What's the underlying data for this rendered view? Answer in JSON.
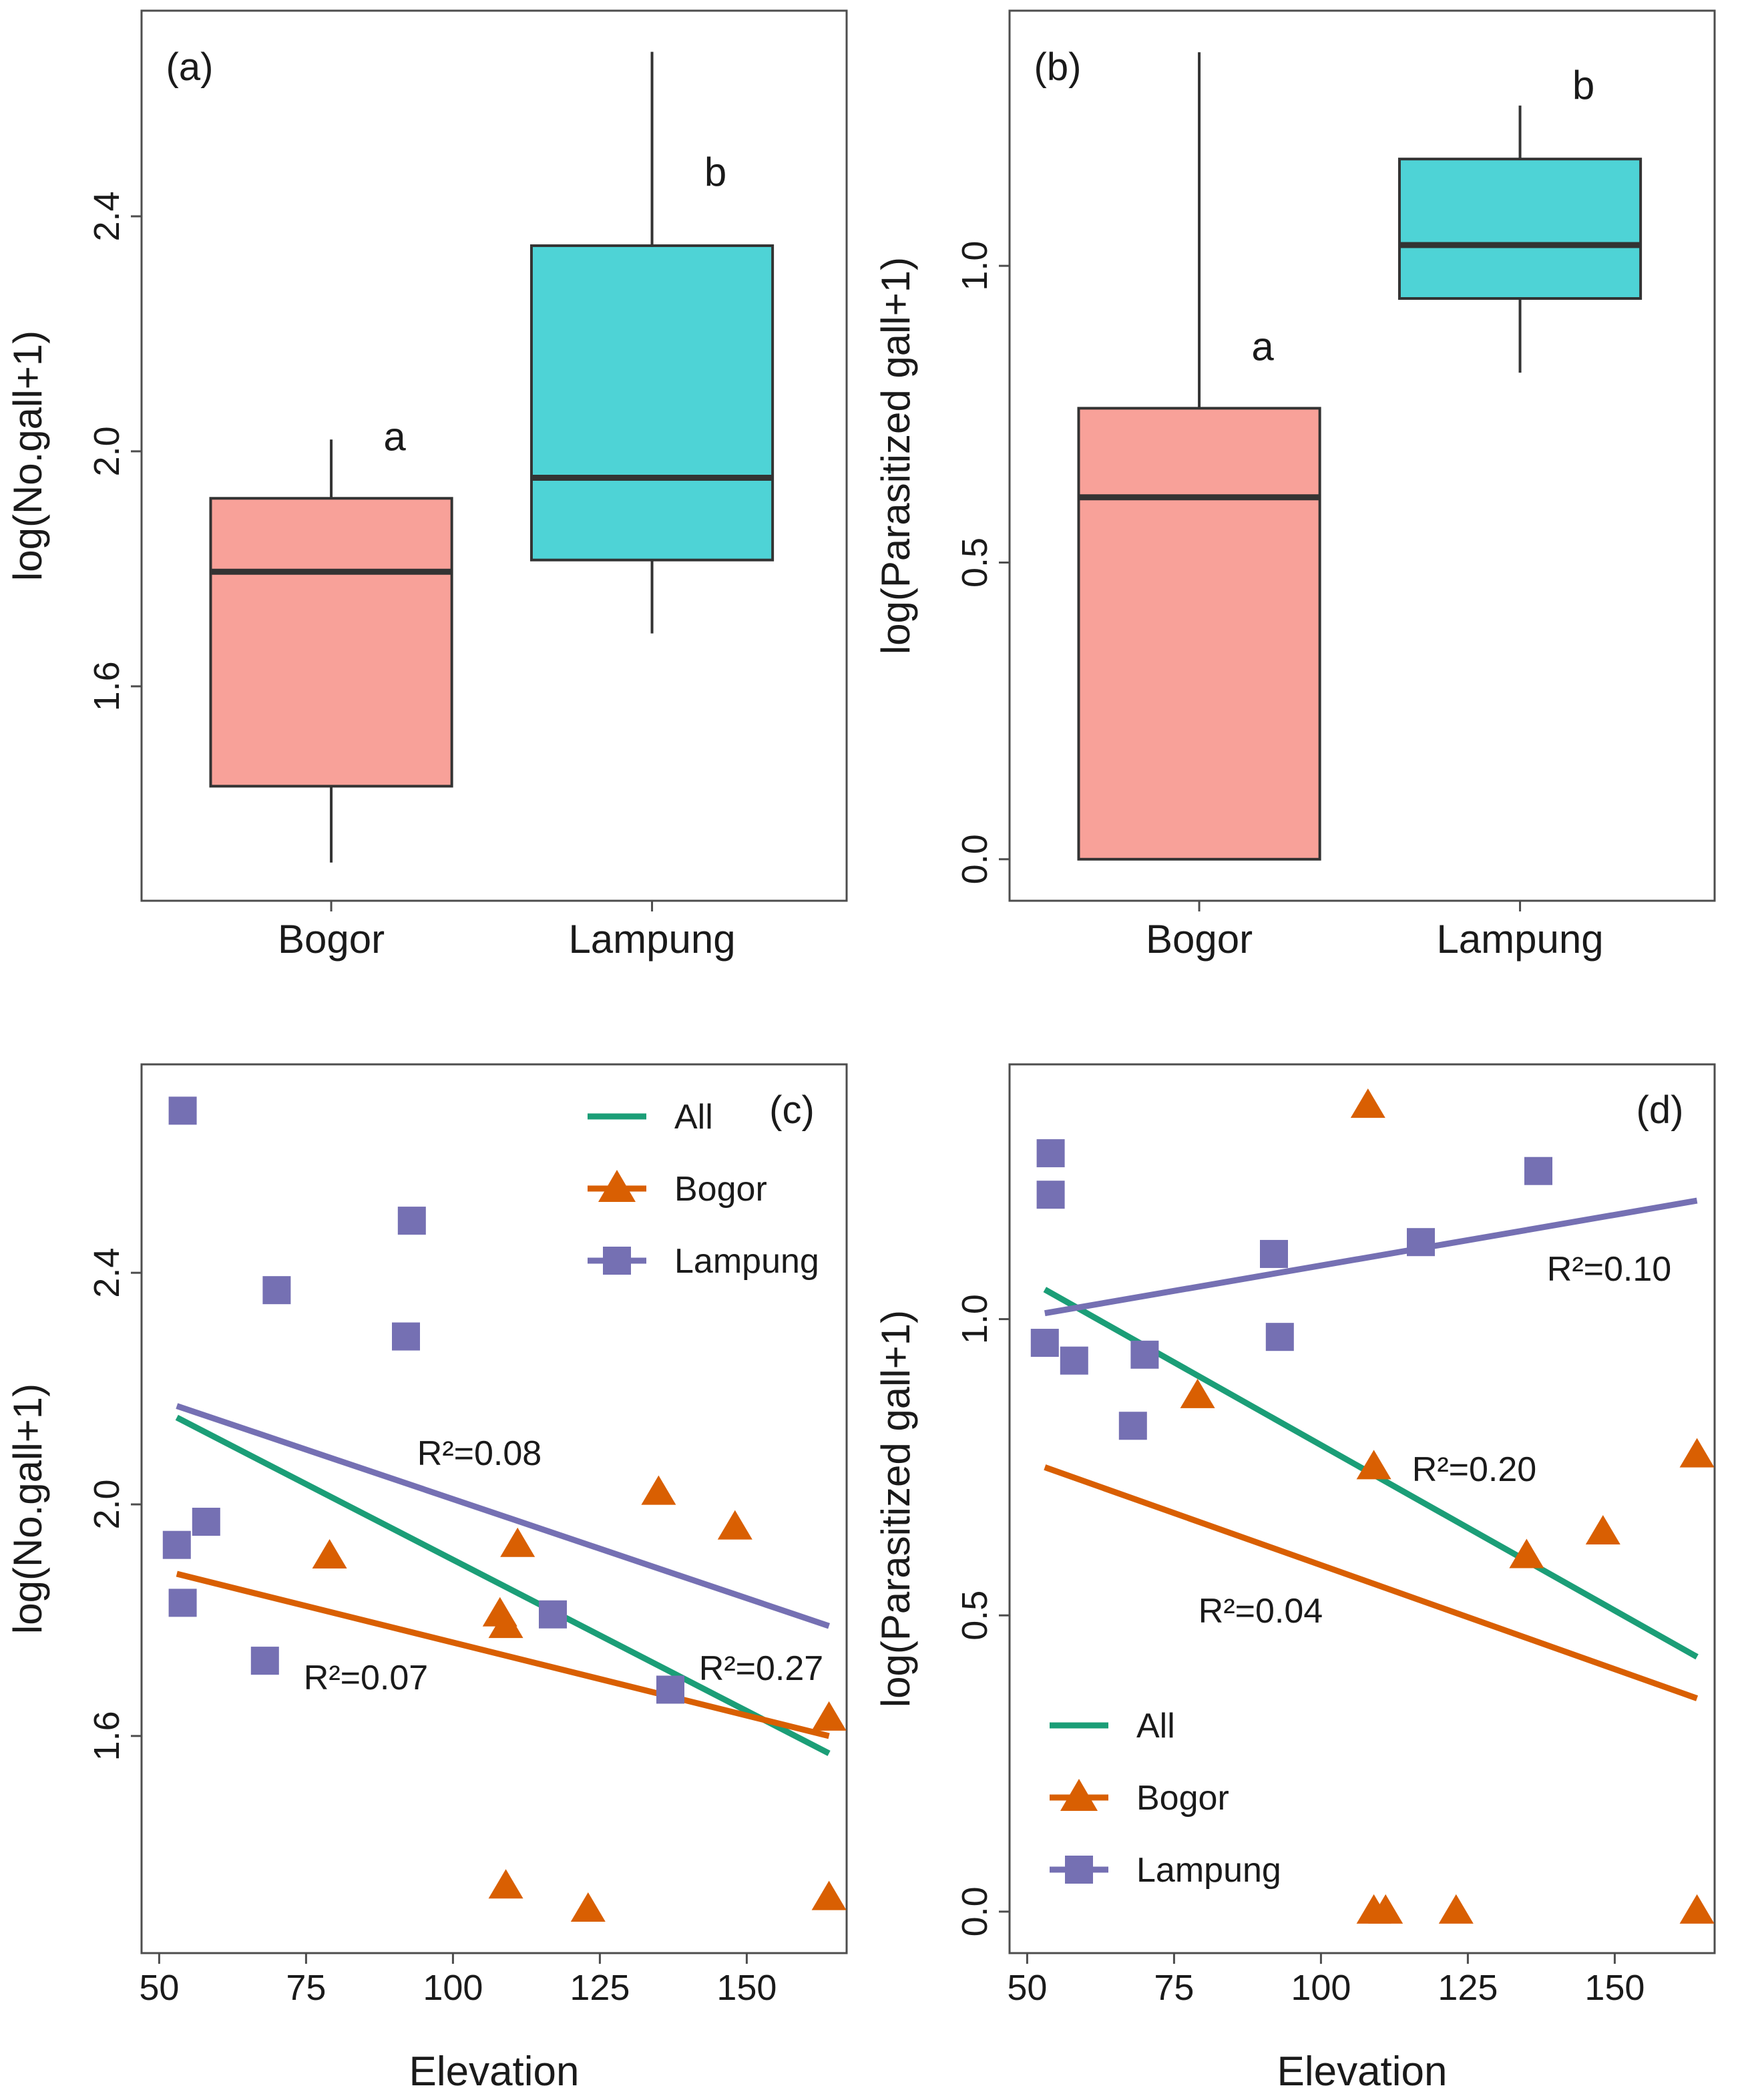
{
  "chart_data": [
    {
      "panel": "a",
      "type": "box",
      "label": "(a)",
      "ylabel": "log(No.gall+1)",
      "categories": [
        "Bogor",
        "Lampung"
      ],
      "colors": [
        "#F8A199",
        "#4ED3D6"
      ],
      "boxes": [
        {
          "group": "Bogor",
          "whisker_low": 1.3,
          "q1": 1.43,
          "median": 1.795,
          "q3": 1.92,
          "whisker_high": 2.02,
          "letter": "a"
        },
        {
          "group": "Lampung",
          "whisker_low": 1.69,
          "q1": 1.815,
          "median": 1.955,
          "q3": 2.35,
          "whisker_high": 2.68,
          "letter": "b"
        }
      ],
      "ylim": [
        1.235,
        2.75
      ],
      "yticks": [
        1.6,
        2.0,
        2.4
      ],
      "ytick_labels": [
        "1.6",
        "2.0",
        "2.4"
      ]
    },
    {
      "panel": "b",
      "type": "box",
      "label": "(b)",
      "ylabel": "log(Parasitized gall+1)",
      "categories": [
        "Bogor",
        "Lampung"
      ],
      "colors": [
        "#F8A199",
        "#4ED3D6"
      ],
      "boxes": [
        {
          "group": "Bogor",
          "whisker_low": 0.0,
          "q1": 0.0,
          "median": 0.61,
          "q3": 0.76,
          "whisker_high": 1.36,
          "letter": "a"
        },
        {
          "group": "Lampung",
          "whisker_low": 0.82,
          "q1": 0.945,
          "median": 1.035,
          "q3": 1.18,
          "whisker_high": 1.27,
          "letter": "b"
        }
      ],
      "ylim": [
        -0.07,
        1.43
      ],
      "yticks": [
        0.0,
        0.5,
        1.0
      ],
      "ytick_labels": [
        "0.0",
        "0.5",
        "1.0"
      ]
    },
    {
      "panel": "c",
      "type": "scatter",
      "label": "(c)",
      "xlabel": "Elevation",
      "ylabel": "log(No.gall+1)",
      "xlim": [
        47,
        167
      ],
      "ylim": [
        1.225,
        2.76
      ],
      "xticks": [
        50,
        75,
        100,
        125,
        150
      ],
      "xtick_labels": [
        "50",
        "75",
        "100",
        "125",
        "150"
      ],
      "yticks": [
        1.6,
        2.0,
        2.4
      ],
      "ytick_labels": [
        "1.6",
        "2.0",
        "2.4"
      ],
      "legend_position": "top-right",
      "legend": [
        "All",
        "Bogor",
        "Lampung"
      ],
      "series": [
        {
          "name": "Bogor",
          "marker": "triangle",
          "color": "#D95F02",
          "points": [
            [
              79,
              1.91
            ],
            [
              108,
              1.81
            ],
            [
              109,
              1.79
            ],
            [
              111,
              1.93
            ],
            [
              135,
              2.02
            ],
            [
              148,
              1.96
            ],
            [
              109,
              1.34
            ],
            [
              123,
              1.3
            ],
            [
              164,
              1.63
            ],
            [
              164,
              1.32
            ]
          ]
        },
        {
          "name": "Lampung",
          "marker": "square",
          "color": "#7570B3",
          "points": [
            [
              54,
              2.68
            ],
            [
              70,
              2.37
            ],
            [
              93,
              2.49
            ],
            [
              92,
              2.29
            ],
            [
              53,
              1.93
            ],
            [
              58,
              1.97
            ],
            [
              54,
              1.83
            ],
            [
              68,
              1.73
            ],
            [
              117,
              1.81
            ],
            [
              137,
              1.68
            ]
          ]
        }
      ],
      "fits": [
        {
          "name": "All",
          "color": "#1B9E77",
          "x": [
            53,
            164
          ],
          "y": [
            2.15,
            1.57
          ],
          "r2": "R²=0.27"
        },
        {
          "name": "Bogor",
          "color": "#D95F02",
          "x": [
            53,
            164
          ],
          "y": [
            1.88,
            1.6
          ],
          "r2": "R²=0.07"
        },
        {
          "name": "Lampung",
          "color": "#7570B3",
          "x": [
            53,
            164
          ],
          "y": [
            2.17,
            1.79
          ],
          "r2": "R²=0.08"
        }
      ]
    },
    {
      "panel": "d",
      "type": "scatter",
      "label": "(d)",
      "xlabel": "Elevation",
      "ylabel": "log(Parasitized gall+1)",
      "xlim": [
        47,
        167
      ],
      "ylim": [
        -0.07,
        1.43
      ],
      "xticks": [
        50,
        75,
        100,
        125,
        150
      ],
      "xtick_labels": [
        "50",
        "75",
        "100",
        "125",
        "150"
      ],
      "yticks": [
        0.0,
        0.5,
        1.0
      ],
      "ytick_labels": [
        "0.0",
        "0.5",
        "1.0"
      ],
      "legend_position": "bottom-left",
      "legend": [
        "All",
        "Bogor",
        "Lampung"
      ],
      "series": [
        {
          "name": "Bogor",
          "marker": "triangle",
          "color": "#D95F02",
          "points": [
            [
              108,
              1.36
            ],
            [
              79,
              0.87
            ],
            [
              109,
              0.75
            ],
            [
              135,
              0.6
            ],
            [
              148,
              0.64
            ],
            [
              164,
              0.77
            ],
            [
              109,
              0.0
            ],
            [
              111,
              0.0
            ],
            [
              123,
              0.0
            ],
            [
              164,
              0.0
            ]
          ]
        },
        {
          "name": "Lampung",
          "marker": "square",
          "color": "#7570B3",
          "points": [
            [
              54,
              1.28
            ],
            [
              54,
              1.21
            ],
            [
              137,
              1.25
            ],
            [
              117,
              1.13
            ],
            [
              92,
              1.11
            ],
            [
              93,
              0.97
            ],
            [
              53,
              0.96
            ],
            [
              58,
              0.93
            ],
            [
              70,
              0.94
            ],
            [
              68,
              0.82
            ]
          ]
        }
      ],
      "fits": [
        {
          "name": "All",
          "color": "#1B9E77",
          "x": [
            53,
            164
          ],
          "y": [
            1.05,
            0.43
          ],
          "r2": "R²=0.20"
        },
        {
          "name": "Bogor",
          "color": "#D95F02",
          "x": [
            53,
            164
          ],
          "y": [
            0.75,
            0.36
          ],
          "r2": "R²=0.04"
        },
        {
          "name": "Lampung",
          "color": "#7570B3",
          "x": [
            53,
            164
          ],
          "y": [
            1.01,
            1.2
          ],
          "r2": "R²=0.10"
        }
      ]
    }
  ]
}
